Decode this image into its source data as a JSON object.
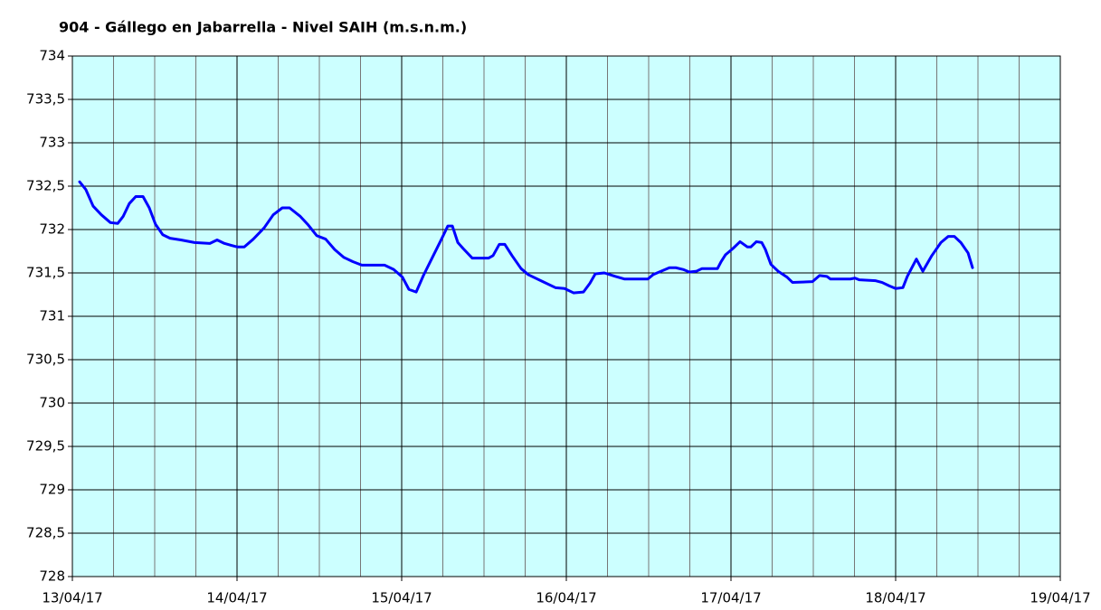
{
  "chart_data": {
    "type": "line",
    "title": "904 - Gállego en Jabarrella - Nivel SAIH (m.s.n.m.)",
    "xlim": [
      0,
      6
    ],
    "xticks": [
      {
        "value": 0,
        "label": "13/04/17"
      },
      {
        "value": 1,
        "label": "14/04/17"
      },
      {
        "value": 2,
        "label": "15/04/17"
      },
      {
        "value": 3,
        "label": "16/04/17"
      },
      {
        "value": 4,
        "label": "17/04/17"
      },
      {
        "value": 5,
        "label": "18/04/17"
      },
      {
        "value": 6,
        "label": "19/04/17"
      }
    ],
    "ylim": [
      728,
      734
    ],
    "yticks": [
      728,
      {
        "value": 728.5,
        "label": "728,5"
      },
      729,
      {
        "value": 729.5,
        "label": "729,5"
      },
      730,
      {
        "value": 730.5,
        "label": "730,5"
      },
      731,
      {
        "value": 731.5,
        "label": "731,5"
      },
      732,
      {
        "value": 732.5,
        "label": "732,5"
      },
      733,
      {
        "value": 733.5,
        "label": "733,5"
      },
      734
    ],
    "grid": true,
    "background": "#ccffff",
    "series": [
      {
        "color": "#0000ff",
        "x": [
          0.044,
          0.082,
          0.126,
          0.176,
          0.231,
          0.275,
          0.308,
          0.346,
          0.385,
          0.429,
          0.467,
          0.505,
          0.549,
          0.593,
          0.659,
          0.742,
          0.835,
          0.879,
          0.923,
          1.0,
          1.044,
          1.099,
          1.165,
          1.22,
          1.275,
          1.319,
          1.385,
          1.429,
          1.484,
          1.538,
          1.593,
          1.648,
          1.703,
          1.758,
          1.813,
          1.896,
          1.951,
          2.005,
          2.044,
          2.088,
          2.132,
          2.187,
          2.242,
          2.28,
          2.308,
          2.341,
          2.374,
          2.429,
          2.527,
          2.555,
          2.593,
          2.626,
          2.67,
          2.725,
          2.769,
          2.857,
          2.934,
          2.989,
          3.044,
          3.104,
          3.143,
          3.176,
          3.231,
          3.297,
          3.352,
          3.495,
          3.527,
          3.626,
          3.665,
          3.709,
          3.747,
          3.791,
          3.824,
          3.918,
          3.94,
          3.967,
          4.011,
          4.055,
          4.099,
          4.121,
          4.154,
          4.187,
          4.209,
          4.242,
          4.286,
          4.341,
          4.374,
          4.495,
          4.538,
          4.582,
          4.604,
          4.725,
          4.753,
          4.78,
          4.879,
          4.918,
          4.962,
          5.0,
          5.044,
          5.071,
          5.126,
          5.165,
          5.22,
          5.275,
          5.319,
          5.357,
          5.396,
          5.44,
          5.467
        ],
        "values": [
          732.55,
          732.46,
          732.27,
          732.17,
          732.08,
          732.07,
          732.15,
          732.3,
          732.38,
          732.38,
          732.25,
          732.06,
          731.94,
          731.9,
          731.88,
          731.85,
          731.84,
          731.88,
          731.84,
          731.8,
          731.8,
          731.89,
          732.02,
          732.17,
          732.25,
          732.25,
          732.15,
          732.06,
          731.93,
          731.89,
          731.77,
          731.68,
          731.63,
          731.59,
          731.59,
          731.59,
          731.54,
          731.45,
          731.31,
          731.28,
          731.47,
          731.68,
          731.89,
          732.04,
          732.04,
          731.85,
          731.78,
          731.67,
          731.67,
          731.7,
          731.83,
          731.83,
          731.7,
          731.55,
          731.48,
          731.4,
          731.33,
          731.32,
          731.27,
          731.28,
          731.38,
          731.49,
          731.5,
          731.46,
          731.43,
          731.43,
          731.48,
          731.56,
          731.56,
          731.54,
          731.51,
          731.52,
          731.55,
          731.55,
          731.63,
          731.71,
          731.78,
          731.86,
          731.8,
          731.8,
          731.86,
          731.85,
          731.77,
          731.6,
          731.52,
          731.45,
          731.39,
          731.4,
          731.47,
          731.46,
          731.43,
          731.43,
          731.44,
          731.42,
          731.41,
          731.39,
          731.35,
          731.32,
          731.33,
          731.46,
          731.66,
          731.52,
          731.7,
          731.85,
          731.92,
          731.92,
          731.85,
          731.73,
          731.56
        ]
      }
    ]
  }
}
